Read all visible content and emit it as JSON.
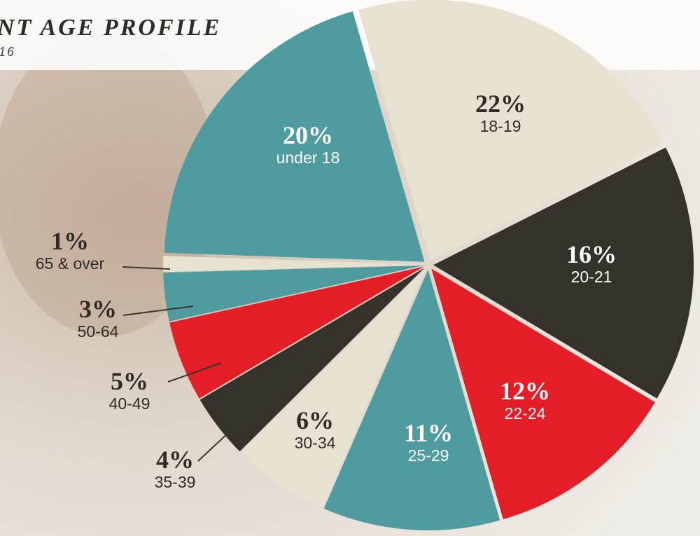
{
  "chart_data": {
    "type": "pie",
    "title": "NT AGE PROFILE",
    "subtitle": "16",
    "categories": [
      "18-19",
      "20-21",
      "22-24",
      "25-29",
      "30-34",
      "35-39",
      "40-49",
      "50-64",
      "65 & over",
      "under 18"
    ],
    "values": [
      22,
      16,
      12,
      11,
      6,
      4,
      5,
      3,
      1,
      20
    ],
    "value_labels": [
      "22%",
      "16%",
      "12%",
      "11%",
      "6%",
      "4%",
      "5%",
      "3%",
      "1%",
      "20%"
    ],
    "colors": [
      "#e6e1d0",
      "#35322b",
      "#e31e26",
      "#4e9ba0",
      "#e6e1d0",
      "#35322b",
      "#e31e26",
      "#4e9ba0",
      "#e6e1d0",
      "#4e9ba0"
    ]
  }
}
